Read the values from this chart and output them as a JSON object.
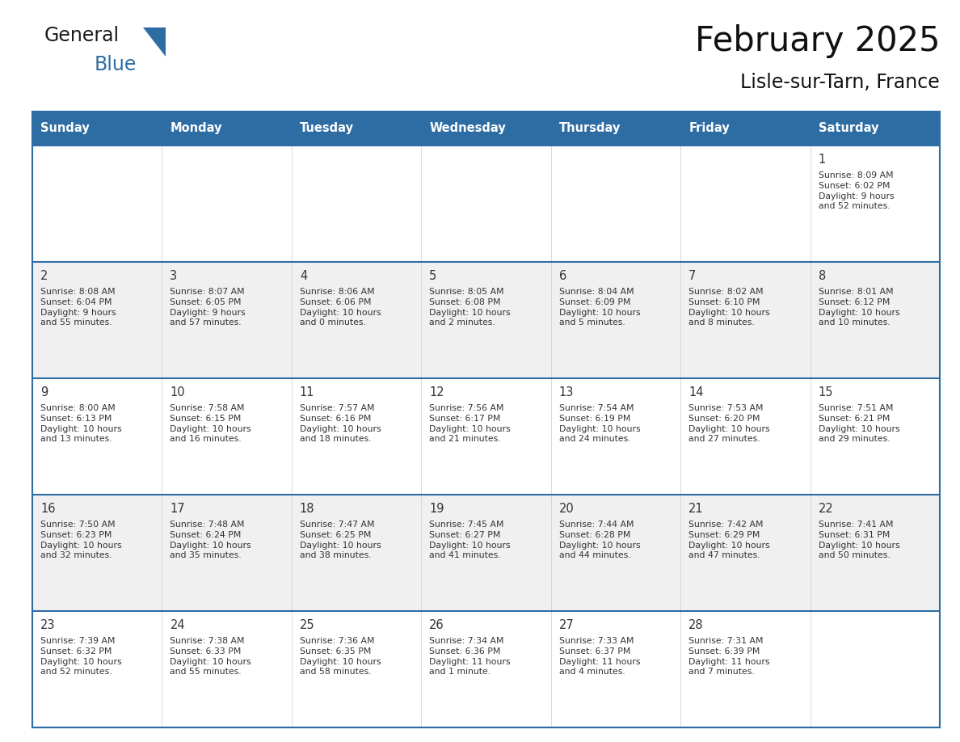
{
  "title": "February 2025",
  "subtitle": "Lisle-sur-Tarn, France",
  "header_bg": "#2e6da4",
  "header_text": "#ffffff",
  "cell_bg_white": "#ffffff",
  "cell_bg_gray": "#f0f0f0",
  "border_color": "#2e6da4",
  "cell_border_color": "#cccccc",
  "days_of_week": [
    "Sunday",
    "Monday",
    "Tuesday",
    "Wednesday",
    "Thursday",
    "Friday",
    "Saturday"
  ],
  "logo_general_color": "#1a1a1a",
  "logo_blue_color": "#2e6da4",
  "triangle_color": "#2e6da4",
  "text_color": "#333333",
  "day_num_color": "#333333",
  "calendar_data": [
    [
      null,
      null,
      null,
      null,
      null,
      null,
      {
        "day": "1",
        "sunrise": "8:09 AM",
        "sunset": "6:02 PM",
        "daylight": "9 hours\nand 52 minutes."
      }
    ],
    [
      {
        "day": "2",
        "sunrise": "8:08 AM",
        "sunset": "6:04 PM",
        "daylight": "9 hours\nand 55 minutes."
      },
      {
        "day": "3",
        "sunrise": "8:07 AM",
        "sunset": "6:05 PM",
        "daylight": "9 hours\nand 57 minutes."
      },
      {
        "day": "4",
        "sunrise": "8:06 AM",
        "sunset": "6:06 PM",
        "daylight": "10 hours\nand 0 minutes."
      },
      {
        "day": "5",
        "sunrise": "8:05 AM",
        "sunset": "6:08 PM",
        "daylight": "10 hours\nand 2 minutes."
      },
      {
        "day": "6",
        "sunrise": "8:04 AM",
        "sunset": "6:09 PM",
        "daylight": "10 hours\nand 5 minutes."
      },
      {
        "day": "7",
        "sunrise": "8:02 AM",
        "sunset": "6:10 PM",
        "daylight": "10 hours\nand 8 minutes."
      },
      {
        "day": "8",
        "sunrise": "8:01 AM",
        "sunset": "6:12 PM",
        "daylight": "10 hours\nand 10 minutes."
      }
    ],
    [
      {
        "day": "9",
        "sunrise": "8:00 AM",
        "sunset": "6:13 PM",
        "daylight": "10 hours\nand 13 minutes."
      },
      {
        "day": "10",
        "sunrise": "7:58 AM",
        "sunset": "6:15 PM",
        "daylight": "10 hours\nand 16 minutes."
      },
      {
        "day": "11",
        "sunrise": "7:57 AM",
        "sunset": "6:16 PM",
        "daylight": "10 hours\nand 18 minutes."
      },
      {
        "day": "12",
        "sunrise": "7:56 AM",
        "sunset": "6:17 PM",
        "daylight": "10 hours\nand 21 minutes."
      },
      {
        "day": "13",
        "sunrise": "7:54 AM",
        "sunset": "6:19 PM",
        "daylight": "10 hours\nand 24 minutes."
      },
      {
        "day": "14",
        "sunrise": "7:53 AM",
        "sunset": "6:20 PM",
        "daylight": "10 hours\nand 27 minutes."
      },
      {
        "day": "15",
        "sunrise": "7:51 AM",
        "sunset": "6:21 PM",
        "daylight": "10 hours\nand 29 minutes."
      }
    ],
    [
      {
        "day": "16",
        "sunrise": "7:50 AM",
        "sunset": "6:23 PM",
        "daylight": "10 hours\nand 32 minutes."
      },
      {
        "day": "17",
        "sunrise": "7:48 AM",
        "sunset": "6:24 PM",
        "daylight": "10 hours\nand 35 minutes."
      },
      {
        "day": "18",
        "sunrise": "7:47 AM",
        "sunset": "6:25 PM",
        "daylight": "10 hours\nand 38 minutes."
      },
      {
        "day": "19",
        "sunrise": "7:45 AM",
        "sunset": "6:27 PM",
        "daylight": "10 hours\nand 41 minutes."
      },
      {
        "day": "20",
        "sunrise": "7:44 AM",
        "sunset": "6:28 PM",
        "daylight": "10 hours\nand 44 minutes."
      },
      {
        "day": "21",
        "sunrise": "7:42 AM",
        "sunset": "6:29 PM",
        "daylight": "10 hours\nand 47 minutes."
      },
      {
        "day": "22",
        "sunrise": "7:41 AM",
        "sunset": "6:31 PM",
        "daylight": "10 hours\nand 50 minutes."
      }
    ],
    [
      {
        "day": "23",
        "sunrise": "7:39 AM",
        "sunset": "6:32 PM",
        "daylight": "10 hours\nand 52 minutes."
      },
      {
        "day": "24",
        "sunrise": "7:38 AM",
        "sunset": "6:33 PM",
        "daylight": "10 hours\nand 55 minutes."
      },
      {
        "day": "25",
        "sunrise": "7:36 AM",
        "sunset": "6:35 PM",
        "daylight": "10 hours\nand 58 minutes."
      },
      {
        "day": "26",
        "sunrise": "7:34 AM",
        "sunset": "6:36 PM",
        "daylight": "11 hours\nand 1 minute."
      },
      {
        "day": "27",
        "sunrise": "7:33 AM",
        "sunset": "6:37 PM",
        "daylight": "11 hours\nand 4 minutes."
      },
      {
        "day": "28",
        "sunrise": "7:31 AM",
        "sunset": "6:39 PM",
        "daylight": "11 hours\nand 7 minutes."
      },
      null
    ]
  ]
}
